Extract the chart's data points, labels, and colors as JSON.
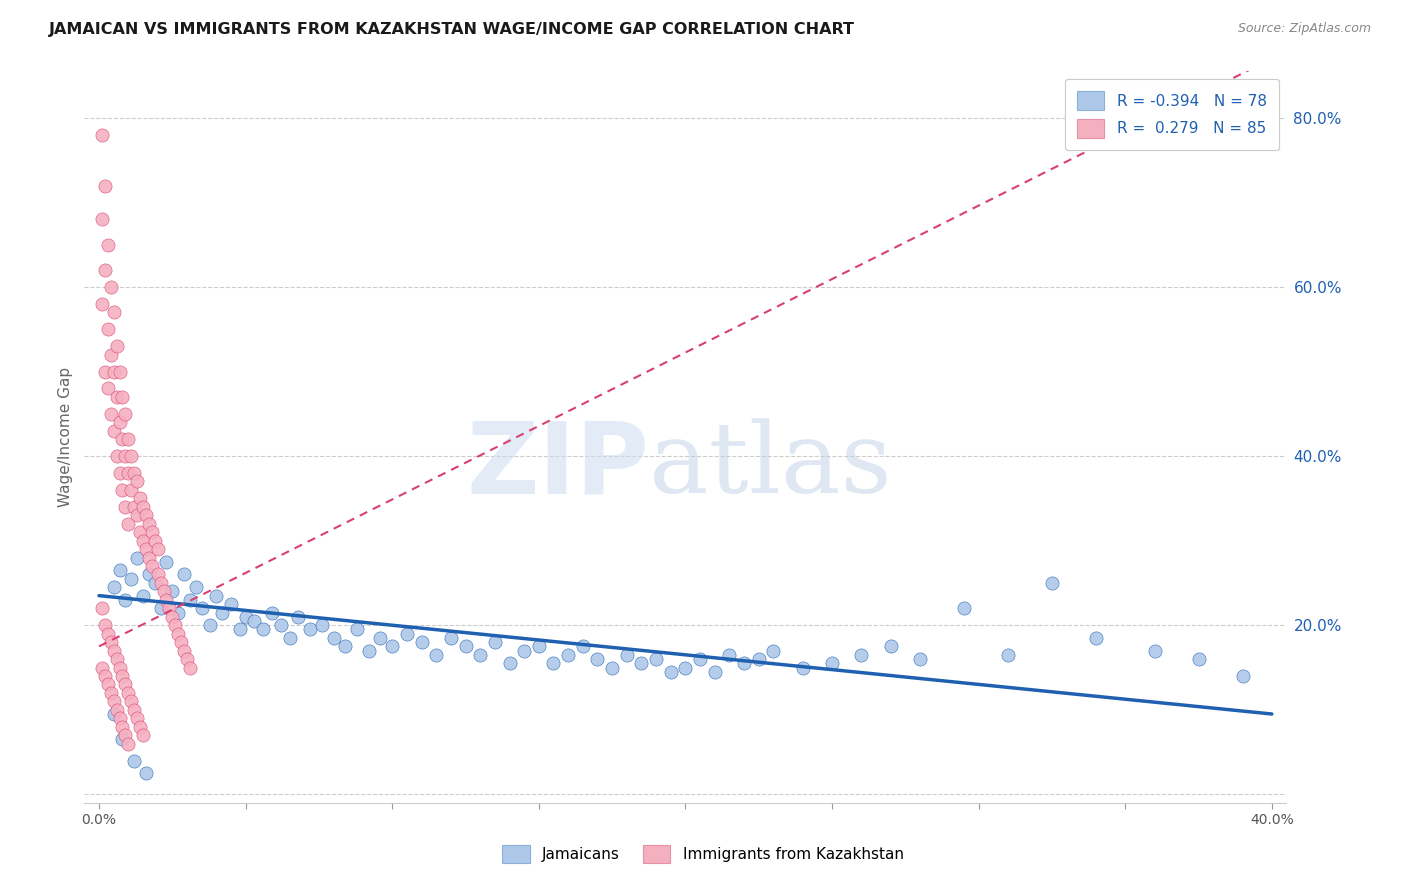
{
  "title": "JAMAICAN VS IMMIGRANTS FROM KAZAKHSTAN WAGE/INCOME GAP CORRELATION CHART",
  "source": "Source: ZipAtlas.com",
  "ylabel": "Wage/Income Gap",
  "y_ticks": [
    0.0,
    0.2,
    0.4,
    0.6,
    0.8
  ],
  "y_tick_labels": [
    "",
    "20.0%",
    "40.0%",
    "60.0%",
    "80.0%"
  ],
  "watermark_zip": "ZIP",
  "watermark_atlas": "atlas",
  "legend_blue_label": "R = -0.394   N = 78",
  "legend_pink_label": "R =  0.279   N = 85",
  "bottom_legend_blue": "Jamaicans",
  "bottom_legend_pink": "Immigrants from Kazakhstan",
  "blue_color": "#adc8e8",
  "pink_color": "#f5b0c0",
  "trend_blue_color": "#2060b0",
  "trend_pink_color": "#d84070",
  "blue_scatter_x": [
    0.005,
    0.007,
    0.009,
    0.011,
    0.013,
    0.015,
    0.017,
    0.019,
    0.021,
    0.023,
    0.025,
    0.027,
    0.029,
    0.031,
    0.033,
    0.035,
    0.038,
    0.04,
    0.042,
    0.045,
    0.048,
    0.05,
    0.053,
    0.056,
    0.059,
    0.062,
    0.065,
    0.068,
    0.072,
    0.076,
    0.08,
    0.084,
    0.088,
    0.092,
    0.096,
    0.1,
    0.105,
    0.11,
    0.115,
    0.12,
    0.125,
    0.13,
    0.135,
    0.14,
    0.145,
    0.15,
    0.155,
    0.16,
    0.165,
    0.17,
    0.175,
    0.18,
    0.185,
    0.19,
    0.195,
    0.2,
    0.205,
    0.21,
    0.215,
    0.22,
    0.225,
    0.23,
    0.24,
    0.25,
    0.26,
    0.27,
    0.28,
    0.295,
    0.31,
    0.325,
    0.34,
    0.36,
    0.375,
    0.39,
    0.005,
    0.008,
    0.012,
    0.016
  ],
  "blue_scatter_y": [
    0.245,
    0.265,
    0.23,
    0.255,
    0.28,
    0.235,
    0.26,
    0.25,
    0.22,
    0.275,
    0.24,
    0.215,
    0.26,
    0.23,
    0.245,
    0.22,
    0.2,
    0.235,
    0.215,
    0.225,
    0.195,
    0.21,
    0.205,
    0.195,
    0.215,
    0.2,
    0.185,
    0.21,
    0.195,
    0.2,
    0.185,
    0.175,
    0.195,
    0.17,
    0.185,
    0.175,
    0.19,
    0.18,
    0.165,
    0.185,
    0.175,
    0.165,
    0.18,
    0.155,
    0.17,
    0.175,
    0.155,
    0.165,
    0.175,
    0.16,
    0.15,
    0.165,
    0.155,
    0.16,
    0.145,
    0.15,
    0.16,
    0.145,
    0.165,
    0.155,
    0.16,
    0.17,
    0.15,
    0.155,
    0.165,
    0.175,
    0.16,
    0.22,
    0.165,
    0.25,
    0.185,
    0.17,
    0.16,
    0.14,
    0.095,
    0.065,
    0.04,
    0.025
  ],
  "pink_scatter_x": [
    0.001,
    0.001,
    0.001,
    0.002,
    0.002,
    0.002,
    0.003,
    0.003,
    0.003,
    0.004,
    0.004,
    0.004,
    0.005,
    0.005,
    0.005,
    0.006,
    0.006,
    0.006,
    0.007,
    0.007,
    0.007,
    0.008,
    0.008,
    0.008,
    0.009,
    0.009,
    0.009,
    0.01,
    0.01,
    0.01,
    0.011,
    0.011,
    0.012,
    0.012,
    0.013,
    0.013,
    0.014,
    0.014,
    0.015,
    0.015,
    0.016,
    0.016,
    0.017,
    0.017,
    0.018,
    0.018,
    0.019,
    0.02,
    0.02,
    0.021,
    0.022,
    0.023,
    0.024,
    0.025,
    0.026,
    0.027,
    0.028,
    0.029,
    0.03,
    0.031,
    0.001,
    0.001,
    0.002,
    0.002,
    0.003,
    0.003,
    0.004,
    0.004,
    0.005,
    0.005,
    0.006,
    0.006,
    0.007,
    0.007,
    0.008,
    0.008,
    0.009,
    0.009,
    0.01,
    0.01,
    0.011,
    0.012,
    0.013,
    0.014,
    0.015
  ],
  "pink_scatter_y": [
    0.78,
    0.68,
    0.58,
    0.72,
    0.62,
    0.5,
    0.65,
    0.55,
    0.48,
    0.6,
    0.52,
    0.45,
    0.57,
    0.5,
    0.43,
    0.53,
    0.47,
    0.4,
    0.5,
    0.44,
    0.38,
    0.47,
    0.42,
    0.36,
    0.45,
    0.4,
    0.34,
    0.42,
    0.38,
    0.32,
    0.4,
    0.36,
    0.38,
    0.34,
    0.37,
    0.33,
    0.35,
    0.31,
    0.34,
    0.3,
    0.33,
    0.29,
    0.32,
    0.28,
    0.31,
    0.27,
    0.3,
    0.26,
    0.29,
    0.25,
    0.24,
    0.23,
    0.22,
    0.21,
    0.2,
    0.19,
    0.18,
    0.17,
    0.16,
    0.15,
    0.22,
    0.15,
    0.2,
    0.14,
    0.19,
    0.13,
    0.18,
    0.12,
    0.17,
    0.11,
    0.16,
    0.1,
    0.15,
    0.09,
    0.14,
    0.08,
    0.13,
    0.07,
    0.12,
    0.06,
    0.11,
    0.1,
    0.09,
    0.08,
    0.07
  ],
  "blue_trend_x": [
    0.0,
    0.4
  ],
  "blue_trend_y": [
    0.235,
    0.095
  ],
  "pink_trend_x": [
    0.0,
    0.4
  ],
  "pink_trend_y": [
    0.175,
    0.87
  ],
  "xlim": [
    -0.005,
    0.405
  ],
  "ylim": [
    -0.01,
    0.855
  ],
  "x_minor_ticks": [
    0.0,
    0.05,
    0.1,
    0.15,
    0.2,
    0.25,
    0.3,
    0.35,
    0.4
  ],
  "grid_ticks": [
    0.0,
    0.2,
    0.4,
    0.6,
    0.8
  ]
}
